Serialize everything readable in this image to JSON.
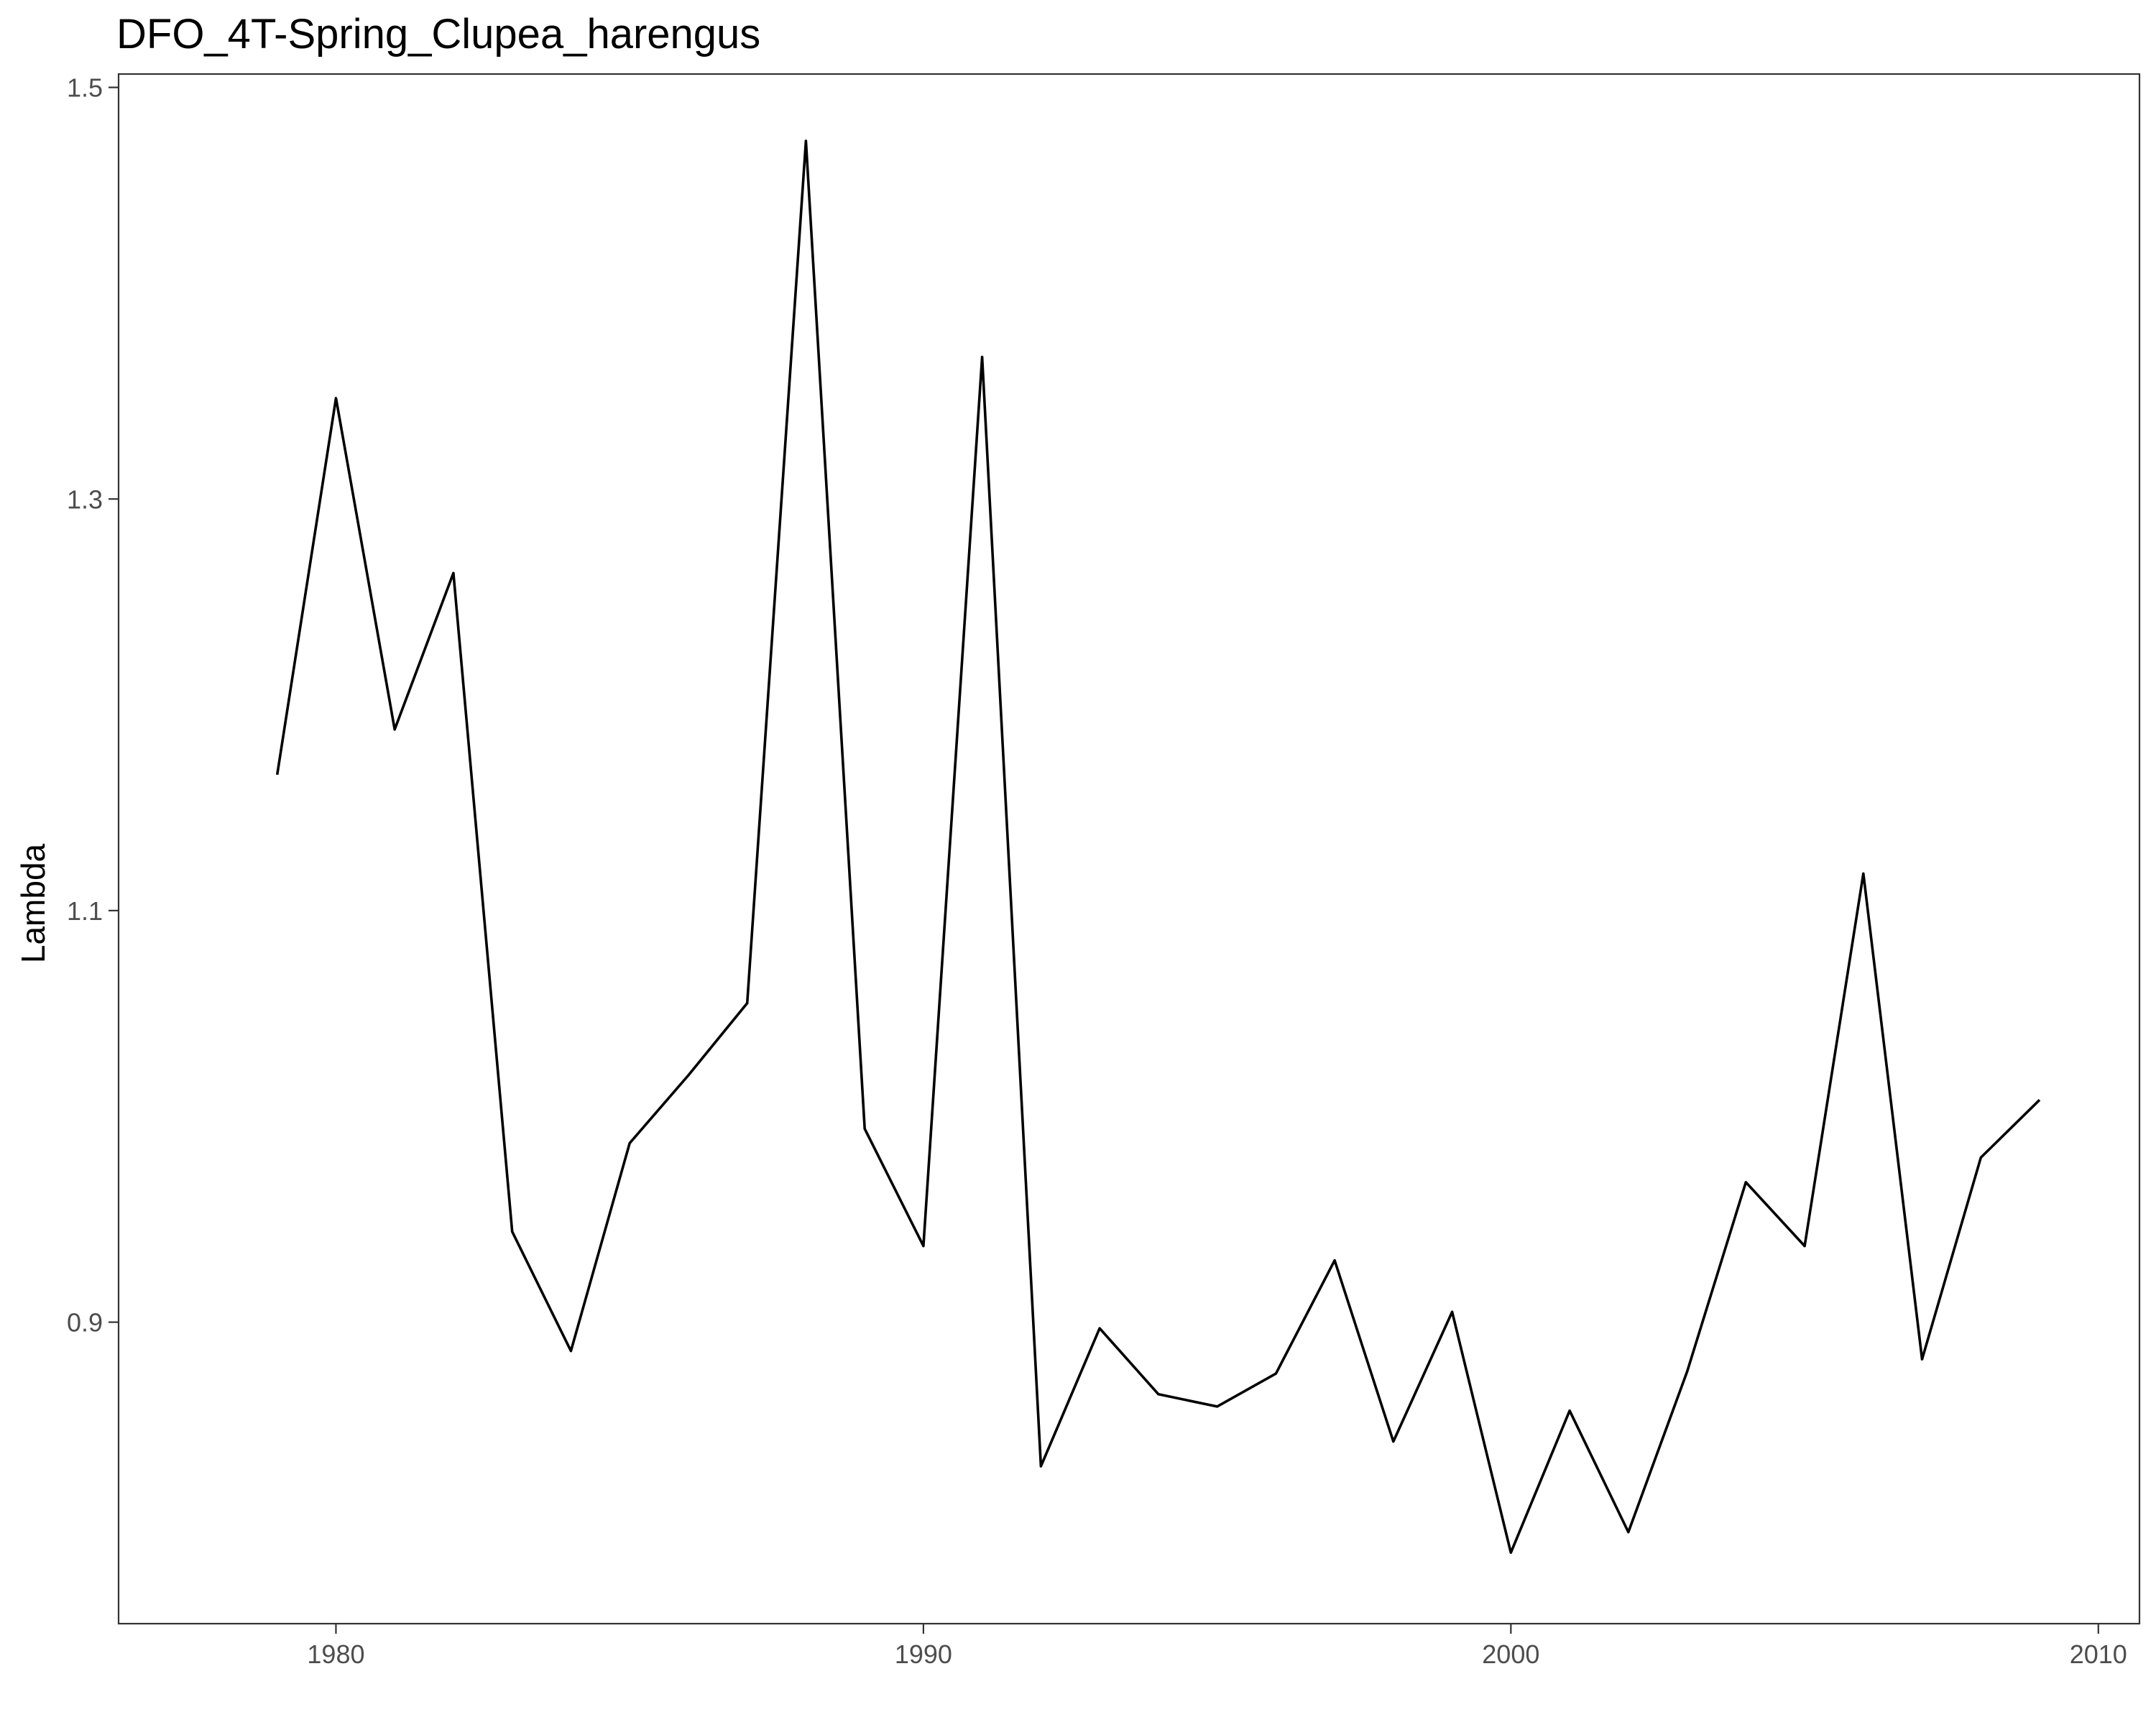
{
  "chart_data": {
    "type": "line",
    "title": "DFO_4T-Spring_Clupea_harengus",
    "xlabel": "",
    "ylabel": "Lambda",
    "xlim": [
      1976.3,
      2010.7
    ],
    "ylim": [
      0.7535,
      1.5065
    ],
    "xticks": [
      1980,
      1990,
      2000,
      2010
    ],
    "xtick_labels": [
      "1980",
      "1990",
      "2000",
      "2010"
    ],
    "yticks": [
      0.9,
      1.1,
      1.3,
      1.5
    ],
    "ytick_labels": [
      "0.9",
      "1.1",
      "1.3",
      "1.5"
    ],
    "grid": false,
    "legend": "none",
    "line_color": "#000000",
    "series": [
      {
        "x": [
          1979,
          1980,
          1981,
          1982,
          1983,
          1984,
          1985,
          1986,
          1987,
          1988,
          1989,
          1990,
          1991,
          1992,
          1993,
          1994,
          1995,
          1996,
          1997,
          1998,
          1999,
          2000,
          2001,
          2002,
          2003,
          2004,
          2005,
          2006,
          2007,
          2008,
          2009
        ],
        "values": [
          1.166,
          1.349,
          1.188,
          1.264,
          0.944,
          0.886,
          0.987,
          1.02,
          1.055,
          1.474,
          0.994,
          0.937,
          1.369,
          0.83,
          0.897,
          0.865,
          0.859,
          0.875,
          0.93,
          0.842,
          0.905,
          0.788,
          0.857,
          0.798,
          0.876,
          0.968,
          0.937,
          1.118,
          0.882,
          0.98,
          1.008
        ]
      }
    ]
  }
}
